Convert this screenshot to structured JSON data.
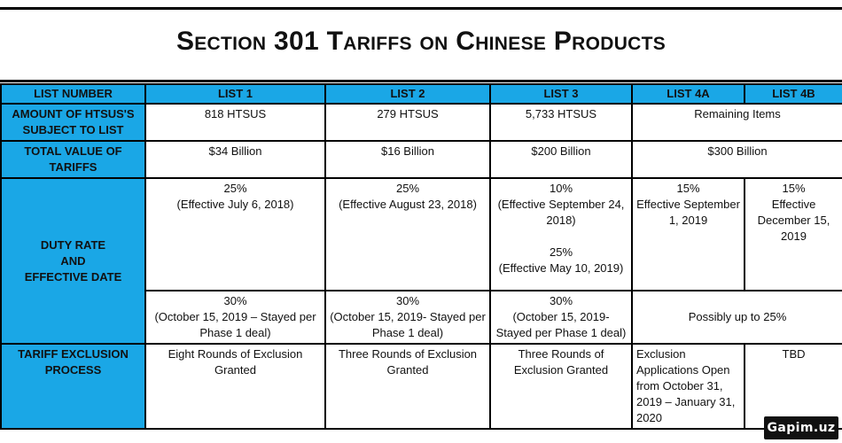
{
  "title": "Section 301 Tariffs on Chinese Products",
  "headers": {
    "list_number": "LIST NUMBER",
    "list1": "LIST 1",
    "list2": "LIST 2",
    "list3": "LIST 3",
    "list4a": "LIST 4A",
    "list4b": "LIST 4B"
  },
  "rows": {
    "htsus": {
      "label": "AMOUNT OF HTSUS'S SUBJECT TO LIST",
      "list1": "818 HTSUS",
      "list2": "279 HTSUS",
      "list3": "5,733 HTSUS",
      "list4": "Remaining Items"
    },
    "value": {
      "label": "TOTAL VALUE OF TARIFFS",
      "list1": "$34 Billion",
      "list2": "$16 Billion",
      "list3": "$200 Billion",
      "list4": "$300 Billion"
    },
    "duty": {
      "label_line1": "DUTY RATE",
      "label_line2": "AND",
      "label_line3": "EFFECTIVE DATE",
      "list1_rate": "25%",
      "list1_date": "(Effective July 6, 2018)",
      "list2_rate": "25%",
      "list2_date": "(Effective August 23, 2018)",
      "list3_rate_a": "10%",
      "list3_date_a": "(Effective September 24, 2018)",
      "list3_rate_b": "25%",
      "list3_date_b": "(Effective May 10, 2019)",
      "list4a_rate": "15%",
      "list4a_date": "Effective September 1, 2019",
      "list4b_rate": "15%",
      "list4b_date": "Effective December 15, 2019"
    },
    "duty2": {
      "list1_rate": "30%",
      "list1_note": "(October 15, 2019 – Stayed per Phase 1 deal)",
      "list2_rate": "30%",
      "list2_note": "(October 15, 2019- Stayed per Phase 1 deal)",
      "list3_rate": "30%",
      "list3_note": "(October 15, 2019- Stayed per Phase 1 deal)",
      "list4": "Possibly up to 25%"
    },
    "exclusion": {
      "label": "TARIFF EXCLUSION PROCESS",
      "list1": "Eight Rounds of Exclusion Granted",
      "list2": "Three Rounds of Exclusion Granted",
      "list3": "Three Rounds of Exclusion Granted",
      "list4a": "Exclusion Applications Open from October 31, 2019 – January 31, 2020",
      "list4b": "TBD"
    }
  },
  "watermark": "Gapim.uz"
}
